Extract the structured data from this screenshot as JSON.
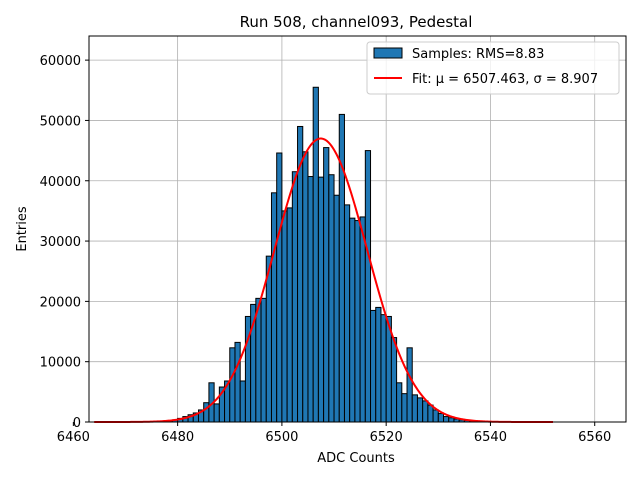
{
  "chart_data": {
    "type": "bar",
    "title": "Run 508, channel093, Pedestal",
    "xlabel": "ADC Counts",
    "ylabel": "Entries",
    "xlim": [
      6463,
      6566
    ],
    "ylim": [
      0,
      64000
    ],
    "xticks": [
      6460,
      6480,
      6500,
      6520,
      6540,
      6560
    ],
    "yticks": [
      0,
      10000,
      20000,
      30000,
      40000,
      50000,
      60000
    ],
    "grid": true,
    "legend_position": "top-right",
    "legend": {
      "histogram_label": "Samples: RMS=8.83",
      "fit_label": "Fit: μ = 6507.463, σ = 8.907"
    },
    "colors": {
      "bar_fill": "#1f77b4",
      "bar_edge": "#000000",
      "fit_line": "#ff0000",
      "grid": "#b0b0b0"
    },
    "histogram": {
      "bin_width": 1,
      "x": [
        6478,
        6479,
        6480,
        6481,
        6482,
        6483,
        6484,
        6485,
        6486,
        6487,
        6488,
        6489,
        6490,
        6491,
        6492,
        6493,
        6494,
        6495,
        6496,
        6497,
        6498,
        6499,
        6500,
        6501,
        6502,
        6503,
        6504,
        6505,
        6506,
        6507,
        6508,
        6509,
        6510,
        6511,
        6512,
        6513,
        6514,
        6515,
        6516,
        6517,
        6518,
        6519,
        6520,
        6521,
        6522,
        6523,
        6524,
        6525,
        6526,
        6527,
        6528,
        6529,
        6530,
        6531,
        6532,
        6533,
        6534,
        6535,
        6536,
        6537
      ],
      "values": [
        200,
        350,
        600,
        900,
        1200,
        1500,
        2000,
        3200,
        6500,
        3000,
        5800,
        6800,
        12300,
        13200,
        6800,
        17500,
        19500,
        20500,
        20500,
        27500,
        38000,
        44600,
        35000,
        35500,
        41500,
        49000,
        44800,
        40700,
        55500,
        40600,
        45500,
        41000,
        37600,
        51000,
        36000,
        33800,
        33400,
        34000,
        45000,
        18500,
        19000,
        17800,
        17500,
        14000,
        6500,
        4700,
        12300,
        4500,
        4000,
        3500,
        2800,
        2000,
        1400,
        900,
        700,
        500,
        350,
        250,
        150,
        80
      ]
    },
    "fit": {
      "mu": 6507.463,
      "sigma": 8.907,
      "amplitude": 47000,
      "x_range": [
        6464,
        6552
      ]
    }
  }
}
